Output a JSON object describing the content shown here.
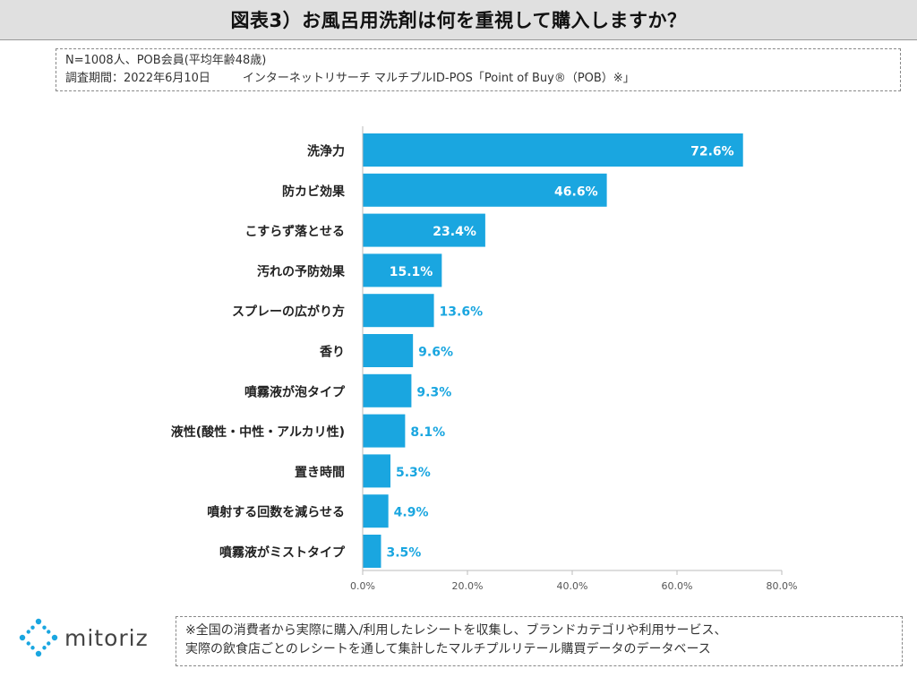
{
  "header": {
    "title": "図表3）お風呂用洗剤は何を重視して購入しますか？"
  },
  "meta": {
    "line1": "N=1008人、POB会員(平均年齢48歳)",
    "line2a": "調査期間：2022年6月10日",
    "line2b": "インターネットリサーチ マルチプルID-POS「Point of Buy®（POB）※」"
  },
  "chart_data": {
    "type": "bar",
    "orientation": "horizontal",
    "categories": [
      "洗浄力",
      "防カビ効果",
      "こすらず落とせる",
      "汚れの予防効果",
      "スプレーの広がり方",
      "香り",
      "噴霧液が泡タイプ",
      "液性(酸性・中性・アルカリ性)",
      "置き時間",
      "噴射する回数を減らせる",
      "噴霧液がミストタイプ"
    ],
    "values": [
      72.6,
      46.6,
      23.4,
      15.1,
      13.6,
      9.6,
      9.3,
      8.1,
      5.3,
      4.9,
      3.5
    ],
    "data_labels": [
      "72.6%",
      "46.6%",
      "23.4%",
      "15.1%",
      "13.6%",
      "9.6%",
      "9.3%",
      "8.1%",
      "5.3%",
      "4.9%",
      "3.5%"
    ],
    "xlim": [
      0,
      80
    ],
    "xticks": [
      "0.0%",
      "20.0%",
      "40.0%",
      "60.0%",
      "80.0%"
    ],
    "bar_color": "#1aa6e0",
    "grid": false
  },
  "footer": {
    "logo_text": "mitoriz",
    "logo_icon": "sparkle-ring-icon",
    "logo_color": "#1aa6e0",
    "note_line1": "※全国の消費者から実際に購入/利用したレシートを収集し、ブランドカテゴリや利用サービス、",
    "note_line2": "実際の飲食店ごとのレシートを通して集計したマルチプルリテール購買データのデータベース"
  }
}
